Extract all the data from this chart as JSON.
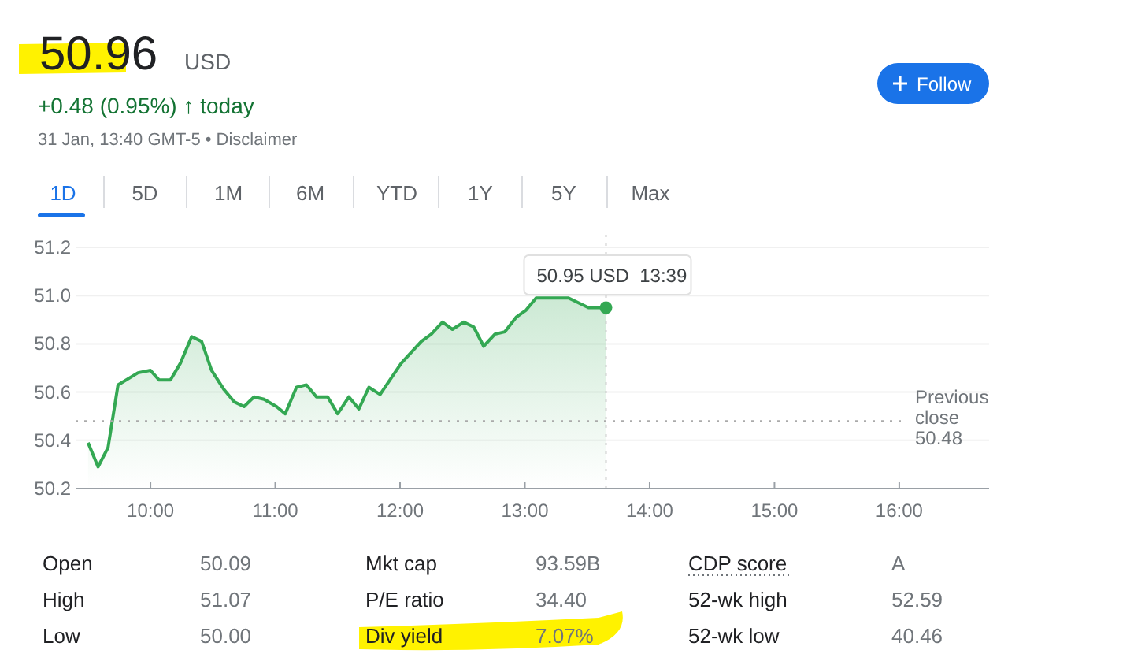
{
  "chart_data": {
    "type": "area",
    "title": "50.96",
    "subtitle": "+0.48 (0.95%) ↑ today",
    "annotations": [
      "USD",
      "31 Jan, 13:40 GMT-5 • Disclaimer",
      "1D",
      "5D",
      "1M",
      "6M",
      "YTD",
      "1Y",
      "5Y",
      "Max",
      "Follow",
      "Open",
      "50.09",
      "Mkt cap",
      "93.59B",
      "CDP score",
      "A",
      "High",
      "51.07",
      "P/E ratio",
      "34.40",
      "52-wk high",
      "52.59",
      "Low",
      "50.00",
      "Div yield",
      "7.07%",
      "52-wk low",
      "40.46",
      {
        "text": "50.95 USD  13:39",
        "x": 13.65,
        "y": 50.95
      }
    ],
    "x": [
      9.5,
      9.58,
      9.66,
      9.74,
      9.9,
      10.0,
      10.07,
      10.16,
      10.24,
      10.33,
      10.41,
      10.49,
      10.59,
      10.67,
      10.75,
      10.83,
      10.91,
      11.01,
      11.08,
      11.17,
      11.25,
      11.33,
      11.42,
      11.5,
      11.59,
      11.67,
      11.75,
      11.84,
      12.01,
      12.17,
      12.25,
      12.34,
      12.42,
      12.51,
      12.59,
      12.67,
      12.76,
      12.84,
      12.93,
      13.01,
      13.09,
      13.35,
      13.51,
      13.65
    ],
    "series": [
      {
        "color": "#34a853",
        "values": [
          50.39,
          50.29,
          50.37,
          50.63,
          50.68,
          50.69,
          50.65,
          50.65,
          50.72,
          50.83,
          50.81,
          50.69,
          50.61,
          50.56,
          50.54,
          50.58,
          50.57,
          50.54,
          50.51,
          50.62,
          50.63,
          50.58,
          50.58,
          50.51,
          50.58,
          50.53,
          50.62,
          50.59,
          50.72,
          50.81,
          50.84,
          50.89,
          50.86,
          50.89,
          50.87,
          50.79,
          50.84,
          50.85,
          50.91,
          50.94,
          50.99,
          50.99,
          50.95,
          50.95
        ]
      }
    ],
    "xlim": [
      9.4,
      16.72
    ],
    "ylim": [
      50.2,
      51.2
    ],
    "xticks": [
      {
        "value": 10,
        "label": "10:00"
      },
      {
        "value": 11,
        "label": "11:00"
      },
      {
        "value": 12,
        "label": "12:00"
      },
      {
        "value": 13,
        "label": "13:00"
      },
      {
        "value": 14,
        "label": "14:00"
      },
      {
        "value": 15,
        "label": "15:00"
      },
      {
        "value": 16,
        "label": "16:00"
      }
    ],
    "yticks": [
      50.2,
      50.4,
      50.6,
      50.8,
      {
        "value": 51.0,
        "label": "51.0"
      },
      51.2
    ],
    "ref_lines": [
      {
        "axis": "y",
        "value": 50.48,
        "label": "Previous close 50.48",
        "color": "#aaaaaa",
        "line_style": "dotted"
      },
      {
        "axis": "x",
        "value": 13.65,
        "label": null,
        "color": "#cccccc",
        "line_style": "dotted"
      }
    ],
    "grid": "y"
  }
}
